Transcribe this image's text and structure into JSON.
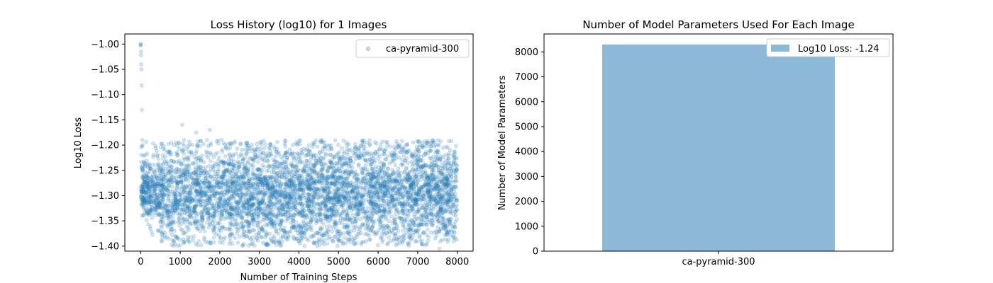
{
  "chart_data": [
    {
      "type": "scatter",
      "title": "Loss History (log10) for 1 Images",
      "xlabel": "Number of Training Steps",
      "ylabel": "Log10 Loss",
      "xlim": [
        -400,
        8400
      ],
      "ylim": [
        -1.41,
        -0.98
      ],
      "xticks": [
        0,
        1000,
        2000,
        3000,
        4000,
        5000,
        6000,
        7000,
        8000
      ],
      "xtick_labels": [
        "0",
        "1000",
        "2000",
        "3000",
        "4000",
        "5000",
        "6000",
        "7000",
        "8000"
      ],
      "yticks": [
        -1.4,
        -1.35,
        -1.3,
        -1.25,
        -1.2,
        -1.15,
        -1.1,
        -1.05,
        -1.0
      ],
      "ytick_labels": [
        "−1.40",
        "−1.35",
        "−1.30",
        "−1.25",
        "−1.20",
        "−1.15",
        "−1.10",
        "−1.05",
        "−1.00"
      ],
      "legend": {
        "placement": "upper right",
        "entries": [
          "ca-pyramid-300"
        ]
      },
      "grid": false,
      "color": "#1f77b4",
      "series": [
        {
          "name": "ca-pyramid-300",
          "description_points": {
            "x": [
              0,
              0,
              0,
              5,
              10,
              15,
              20,
              25,
              30,
              40,
              50
            ],
            "y": [
              -1.0,
              -1.001,
              -1.003,
              -1.015,
              -1.022,
              -1.04,
              -1.05,
              -1.082,
              -1.13,
              -1.19,
              -1.2
            ]
          },
          "trend": {
            "x_range": [
              0,
              8000
            ],
            "steps_plotted": 8000,
            "upper_envelope_y": -1.19,
            "lower_envelope_y": -1.4,
            "early_center_y": -1.3,
            "late_center_y": -1.31,
            "outliers": [
              {
                "x": 1050,
                "y": -1.16
              },
              {
                "x": 1400,
                "y": -1.175
              },
              {
                "x": 1750,
                "y": -1.17
              },
              {
                "x": 7550,
                "y": -1.405
              }
            ]
          }
        }
      ]
    },
    {
      "type": "bar",
      "title": "Number of Model Parameters Used For Each Image",
      "xlabel": "",
      "ylabel": "Number of Model Parameters",
      "categories": [
        "ca-pyramid-300"
      ],
      "values": [
        8300
      ],
      "ylim": [
        0,
        8720
      ],
      "yticks": [
        0,
        1000,
        2000,
        3000,
        4000,
        5000,
        6000,
        7000,
        8000
      ],
      "ytick_labels": [
        "0",
        "1000",
        "2000",
        "3000",
        "4000",
        "5000",
        "6000",
        "7000",
        "8000"
      ],
      "legend": {
        "placement": "upper right",
        "entries": [
          "Log10 Loss: -1.24"
        ]
      },
      "grid": false,
      "color": "#8db9d9"
    }
  ]
}
